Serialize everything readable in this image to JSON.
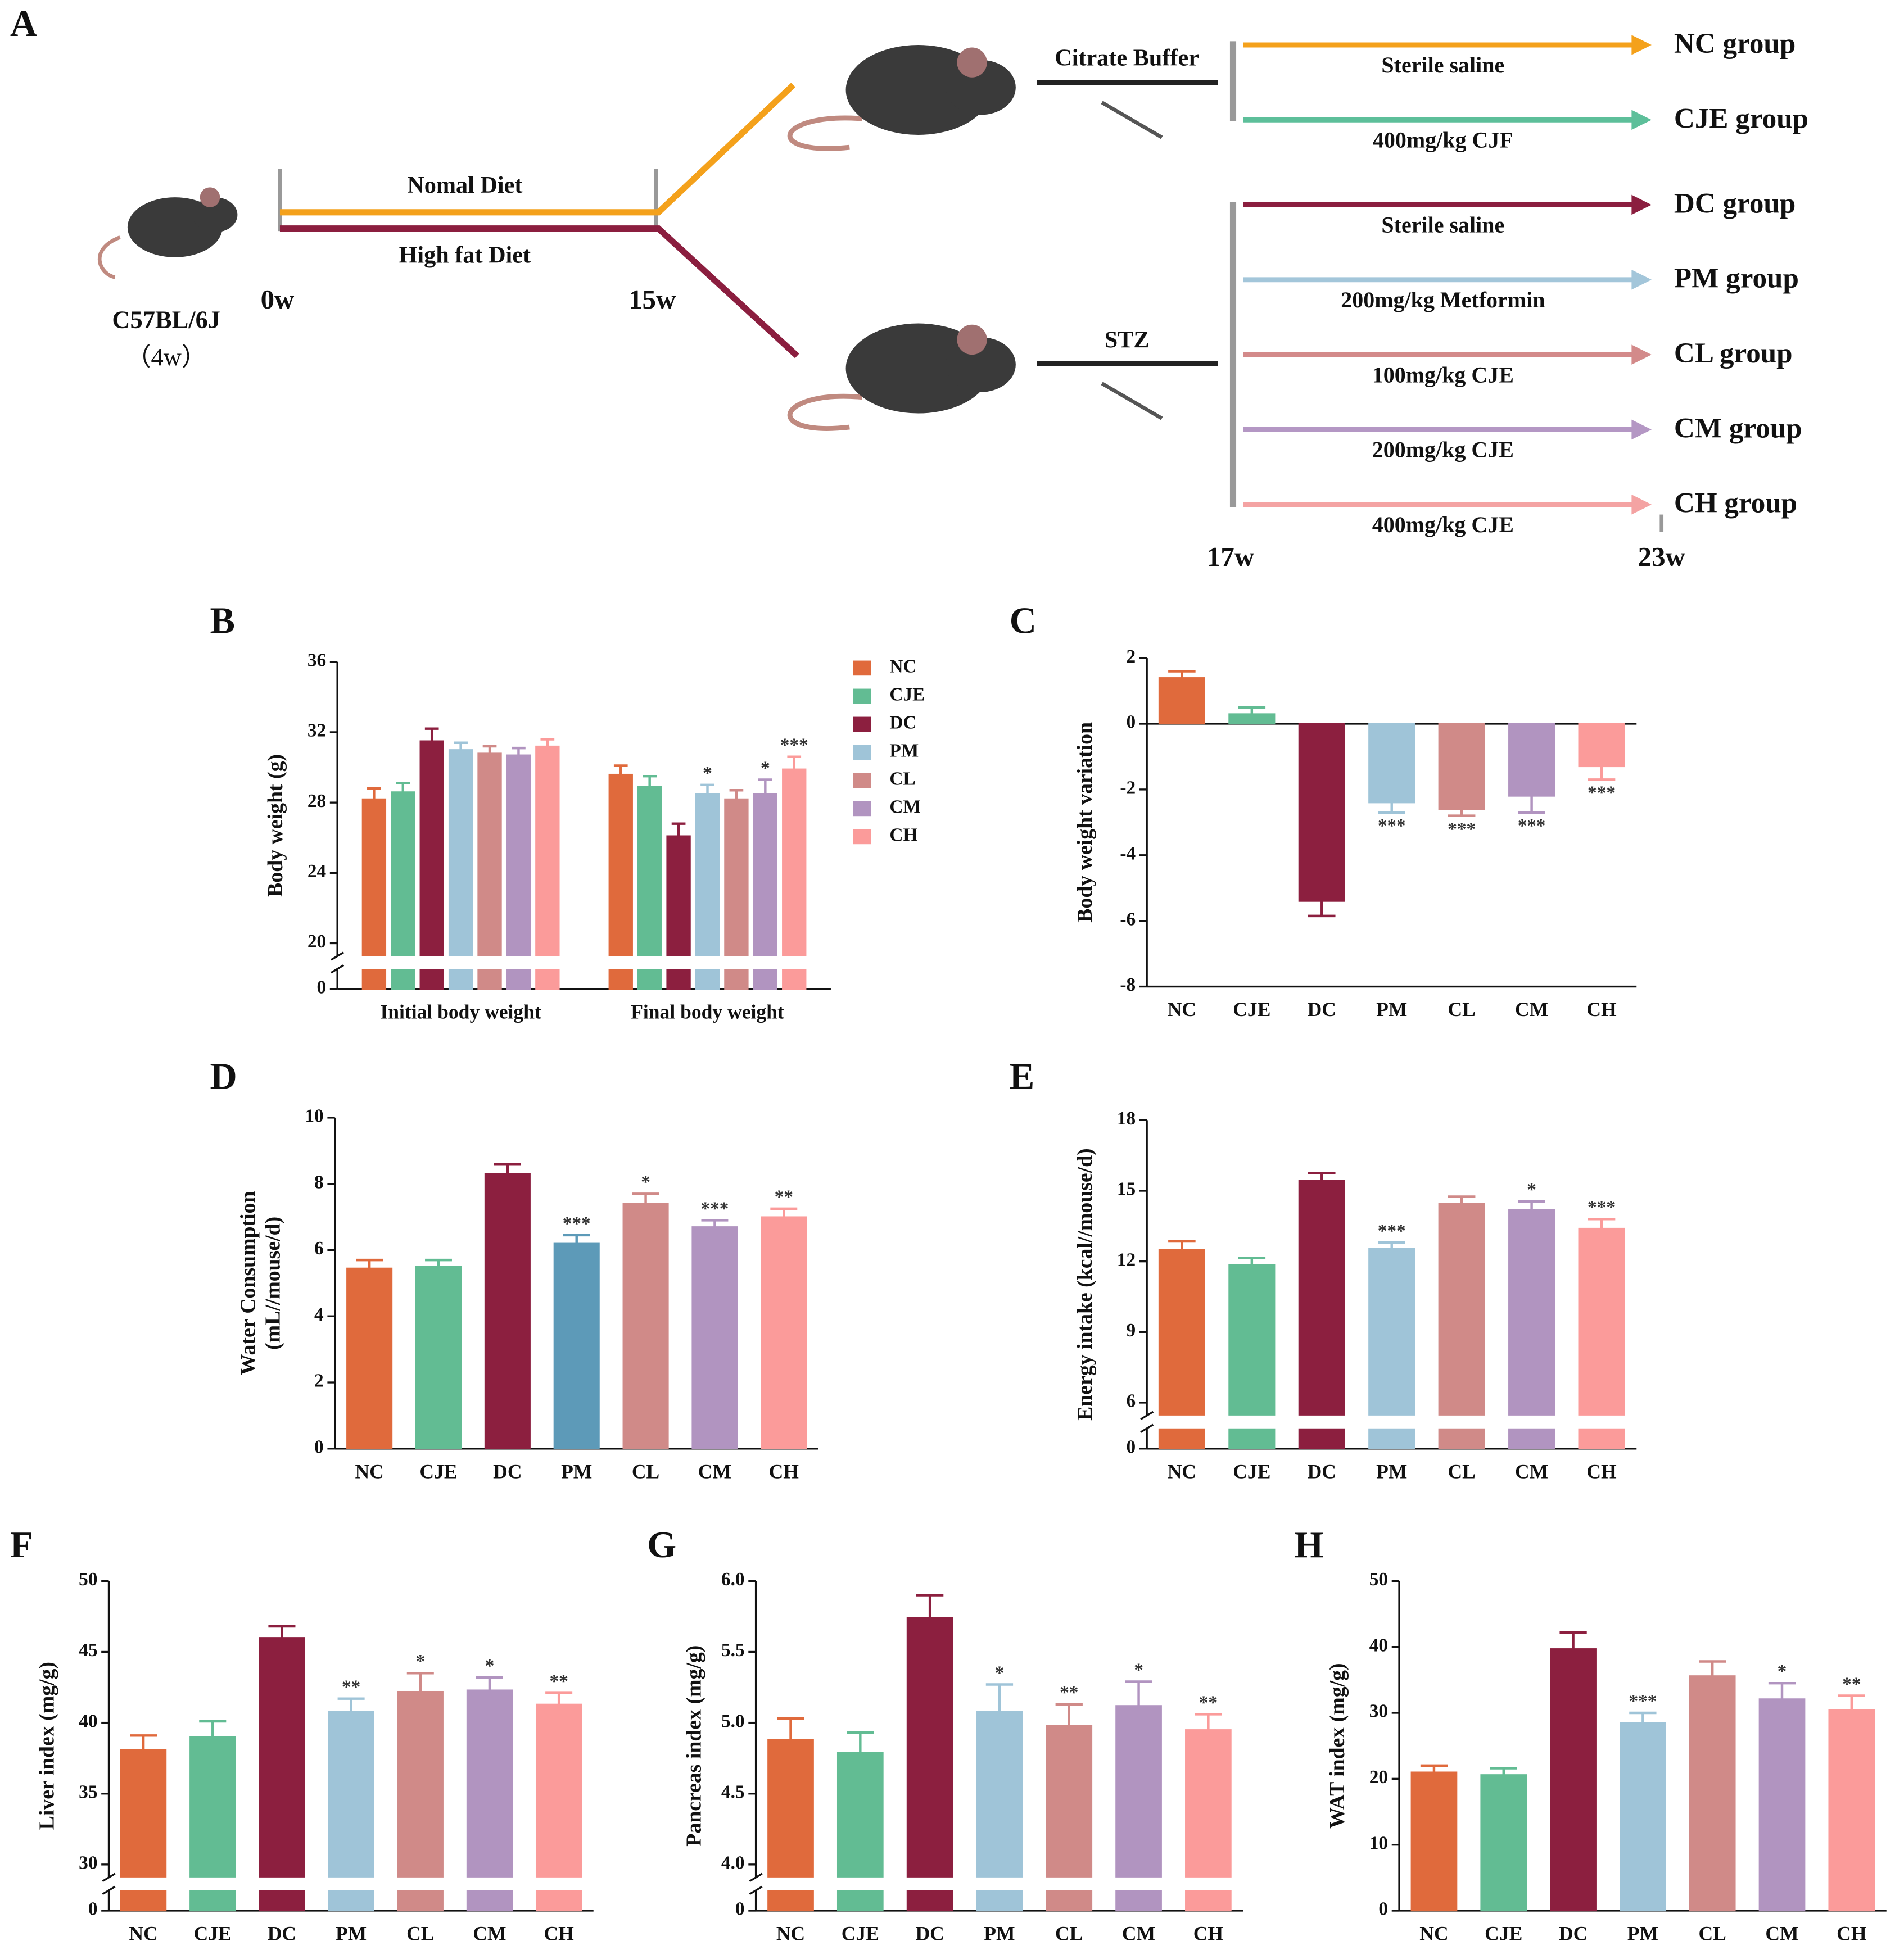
{
  "diagram": {
    "label": "A",
    "strain": "C57BL/6J",
    "age": "（4w）",
    "diets": [
      {
        "label": "Nomal Diet",
        "color": "#f4a11b"
      },
      {
        "label": "High fat Diet",
        "color": "#8b1e3f"
      }
    ],
    "weeks": [
      "0w",
      "15w",
      "17w",
      "23w"
    ],
    "injections": [
      "Citrate Buffer",
      "STZ"
    ],
    "treatments": [
      {
        "dose": "Sterile saline",
        "group": "NC group",
        "color": "#f4a11b"
      },
      {
        "dose": "400mg/kg CJF",
        "group": "CJE group",
        "color": "#5dbf9a"
      },
      {
        "dose": "Sterile saline",
        "group": "DC group",
        "color": "#8b1e3f"
      },
      {
        "dose": "200mg/kg Metformin",
        "group": "PM group",
        "color": "#a3c6da"
      },
      {
        "dose": "100mg/kg CJE",
        "group": "CL group",
        "color": "#d38a8a"
      },
      {
        "dose": "200mg/kg CJE",
        "group": "CM group",
        "color": "#b497c4"
      },
      {
        "dose": "400mg/kg CJE",
        "group": "CH group",
        "color": "#f4a3a3"
      }
    ]
  },
  "chart_data": [
    {
      "type": "bar",
      "label": "B",
      "ylabel": [
        "Body weight (g)"
      ],
      "categories": [
        "Initial body weight",
        "Final body weight"
      ],
      "series": [
        {
          "name": "NC",
          "color": "#e06a3c",
          "values": [
            28.2,
            29.6
          ],
          "errors": [
            0.6,
            0.5
          ],
          "sig": [
            null,
            null
          ]
        },
        {
          "name": "CJE",
          "color": "#62bc93",
          "values": [
            28.6,
            28.9
          ],
          "errors": [
            0.5,
            0.6
          ],
          "sig": [
            null,
            null
          ]
        },
        {
          "name": "DC",
          "color": "#8c1f3f",
          "values": [
            31.5,
            26.1
          ],
          "errors": [
            0.7,
            0.7
          ],
          "sig": [
            null,
            null
          ]
        },
        {
          "name": "PM",
          "color": "#9fc4d8",
          "values": [
            31.0,
            28.5
          ],
          "errors": [
            0.4,
            0.5
          ],
          "sig": [
            null,
            "*"
          ]
        },
        {
          "name": "CL",
          "color": "#d08a88",
          "values": [
            30.8,
            28.2
          ],
          "errors": [
            0.4,
            0.5
          ],
          "sig": [
            null,
            null
          ]
        },
        {
          "name": "CM",
          "color": "#b194c0",
          "values": [
            30.7,
            28.5
          ],
          "errors": [
            0.4,
            0.8
          ],
          "sig": [
            null,
            "*"
          ]
        },
        {
          "name": "CH",
          "color": "#fb9b9a",
          "values": [
            31.2,
            29.9
          ],
          "errors": [
            0.4,
            0.7
          ],
          "sig": [
            null,
            "***"
          ]
        }
      ],
      "ylim": [
        0,
        36
      ],
      "axis_break": 20,
      "yticks": [
        0,
        20,
        24,
        28,
        32,
        36
      ],
      "legend": "right"
    },
    {
      "type": "bar",
      "label": "C",
      "ylabel": [
        "Body weight variation"
      ],
      "categories": [
        "NC",
        "CJE",
        "DC",
        "PM",
        "CL",
        "CM",
        "CH"
      ],
      "colors": [
        "#e06a3c",
        "#62bc93",
        "#8c1f3f",
        "#9fc4d8",
        "#d08a88",
        "#b194c0",
        "#fb9b9a"
      ],
      "values": [
        1.4,
        0.3,
        -5.4,
        -2.4,
        -2.6,
        -2.2,
        -1.3
      ],
      "errors": [
        0.2,
        0.2,
        0.45,
        0.3,
        0.2,
        0.5,
        0.4
      ],
      "sig": [
        null,
        null,
        null,
        "***",
        "***",
        "***",
        "***"
      ],
      "ylim": [
        -8,
        2
      ],
      "yticks": [
        -8,
        -6,
        -4,
        -2,
        0,
        2
      ]
    },
    {
      "type": "bar",
      "label": "D",
      "ylabel": [
        "Water Consumption",
        "(mL//mouse/d)"
      ],
      "categories": [
        "NC",
        "CJE",
        "DC",
        "PM",
        "CL",
        "CM",
        "CH"
      ],
      "colors": [
        "#e06a3c",
        "#62bc93",
        "#8c1f3f",
        "#5d9ab8",
        "#d08a88",
        "#b194c0",
        "#fb9b9a"
      ],
      "values": [
        5.45,
        5.5,
        8.3,
        6.2,
        7.4,
        6.7,
        7.0
      ],
      "errors": [
        0.25,
        0.2,
        0.3,
        0.25,
        0.3,
        0.2,
        0.25
      ],
      "sig": [
        null,
        null,
        null,
        "***",
        "*",
        "***",
        "**"
      ],
      "ylim": [
        0,
        10
      ],
      "yticks": [
        0,
        2,
        4,
        6,
        8,
        10
      ]
    },
    {
      "type": "bar",
      "label": "E",
      "ylabel": [
        "Energy intake (kcal//mouse/d)"
      ],
      "categories": [
        "NC",
        "CJE",
        "DC",
        "PM",
        "CL",
        "CM",
        "CH"
      ],
      "colors": [
        "#e06a3c",
        "#62bc93",
        "#8c1f3f",
        "#9fc4d8",
        "#d08a88",
        "#b194c0",
        "#fb9b9a"
      ],
      "values": [
        12.5,
        11.85,
        15.45,
        12.55,
        14.45,
        14.2,
        13.4
      ],
      "errors": [
        0.35,
        0.3,
        0.3,
        0.25,
        0.3,
        0.35,
        0.4
      ],
      "sig": [
        null,
        null,
        null,
        "***",
        null,
        "*",
        "***"
      ],
      "ylim": [
        0,
        18
      ],
      "axis_break": 6,
      "yticks": [
        0,
        6,
        9,
        12,
        15,
        18
      ]
    },
    {
      "type": "bar",
      "label": "F",
      "ylabel": [
        "Liver index (mg/g)"
      ],
      "categories": [
        "NC",
        "CJE",
        "DC",
        "PM",
        "CL",
        "CM",
        "CH"
      ],
      "colors": [
        "#e06a3c",
        "#62bc93",
        "#8c1f3f",
        "#9fc4d8",
        "#d08a88",
        "#b194c0",
        "#fb9b9a"
      ],
      "values": [
        38.1,
        39.0,
        46.0,
        40.8,
        42.2,
        42.3,
        41.3
      ],
      "errors": [
        1.0,
        1.1,
        0.8,
        0.9,
        1.3,
        0.9,
        0.8
      ],
      "sig": [
        null,
        null,
        null,
        "**",
        "*",
        "*",
        "**"
      ],
      "ylim": [
        0,
        50
      ],
      "axis_break": 30,
      "yticks": [
        0,
        30,
        35,
        40,
        45,
        50
      ]
    },
    {
      "type": "bar",
      "label": "G",
      "ylabel": [
        "Pancreas index (mg/g)"
      ],
      "categories": [
        "NC",
        "CJE",
        "DC",
        "PM",
        "CL",
        "CM",
        "CH"
      ],
      "colors": [
        "#e06a3c",
        "#62bc93",
        "#8c1f3f",
        "#9fc4d8",
        "#d08a88",
        "#b194c0",
        "#fb9b9a"
      ],
      "values": [
        4.88,
        4.79,
        5.74,
        5.08,
        4.98,
        5.12,
        4.95
      ],
      "errors": [
        0.15,
        0.14,
        0.16,
        0.19,
        0.15,
        0.17,
        0.11
      ],
      "sig": [
        null,
        null,
        null,
        "*",
        "**",
        "*",
        "**"
      ],
      "ylim": [
        0,
        6
      ],
      "axis_break": 4,
      "yticks": [
        0,
        {
          "value": 4,
          "label": "4.0"
        },
        4.5,
        {
          "value": 5,
          "label": "5.0"
        },
        5.5,
        {
          "value": 6,
          "label": "6.0"
        }
      ]
    },
    {
      "type": "bar",
      "label": "H",
      "ylabel": [
        "WAT index (mg/g)"
      ],
      "categories": [
        "NC",
        "CJE",
        "DC",
        "PM",
        "CL",
        "CM",
        "CH"
      ],
      "colors": [
        "#e06a3c",
        "#62bc93",
        "#8c1f3f",
        "#9fc4d8",
        "#d08a88",
        "#b194c0",
        "#fb9b9a"
      ],
      "values": [
        21.0,
        20.6,
        39.7,
        28.5,
        35.6,
        32.1,
        30.5
      ],
      "errors": [
        1.0,
        1.0,
        2.5,
        1.5,
        2.2,
        2.4,
        2.1
      ],
      "sig": [
        null,
        null,
        null,
        "***",
        null,
        "*",
        "**"
      ],
      "ylim": [
        0,
        50
      ],
      "yticks": [
        0,
        10,
        20,
        30,
        40,
        50
      ]
    }
  ]
}
